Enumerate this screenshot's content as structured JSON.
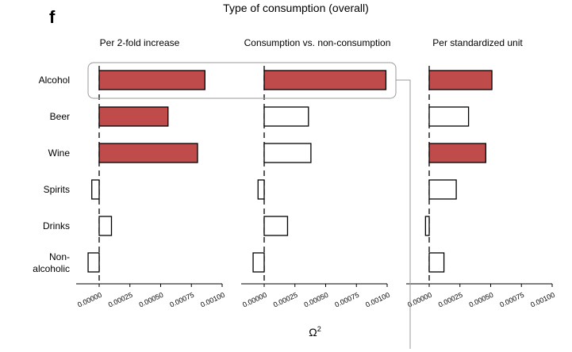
{
  "panel_letter": "f",
  "chart_data": {
    "type": "bar",
    "orientation": "horizontal",
    "title": "Type of consumption (overall)",
    "xlabel": "Ω",
    "xlabel_superscript": "2",
    "categories": [
      "Alcohol",
      "Beer",
      "Wine",
      "Spirits",
      "Drinks",
      "Non-\nalcoholic"
    ],
    "xlim": [
      -0.0002,
      0.001
    ],
    "xticks": [
      0.0,
      0.00025,
      0.0005,
      0.00075,
      0.001
    ],
    "xtick_labels": [
      "0.00000",
      "0.00025",
      "0.00050",
      "0.00075",
      "0.00100"
    ],
    "highlight_color": "#bf4b4b",
    "panels": [
      {
        "title": "Per 2-fold increase",
        "values": [
          0.00086,
          0.00056,
          0.0008,
          -6e-05,
          0.0001,
          -9e-05
        ],
        "significant": [
          true,
          true,
          true,
          false,
          false,
          false
        ]
      },
      {
        "title": "Consumption vs. non-consumption",
        "values": [
          0.00099,
          0.00036,
          0.00038,
          -5e-05,
          0.00019,
          -9e-05
        ],
        "significant": [
          true,
          false,
          false,
          false,
          false,
          false
        ]
      },
      {
        "title": "Per standardized unit",
        "values": [
          0.00051,
          0.00032,
          0.00046,
          0.00022,
          -3e-05,
          0.00012
        ],
        "significant": [
          true,
          false,
          true,
          false,
          false,
          false
        ]
      }
    ]
  }
}
